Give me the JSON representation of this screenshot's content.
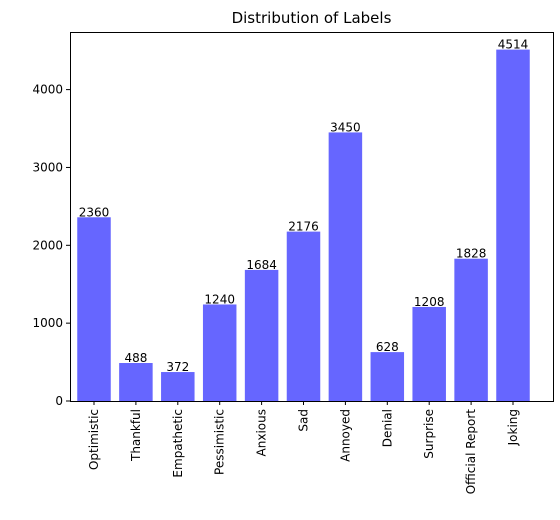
{
  "chart_data": {
    "type": "bar",
    "title": "Distribution of Labels",
    "xlabel": "",
    "ylabel": "",
    "categories": [
      "Optimistic",
      "Thankful",
      "Empathetic",
      "Pessimistic",
      "Anxious",
      "Sad",
      "Annoyed",
      "Denial",
      "Surprise",
      "Official Report",
      "Joking"
    ],
    "values": [
      2360,
      488,
      372,
      1240,
      1684,
      2176,
      3450,
      628,
      1208,
      1828,
      4514
    ],
    "data_labels": [
      "2360",
      "488",
      "372",
      "1240",
      "1684",
      "2176",
      "3450",
      "628",
      "1208",
      "1828",
      "4514"
    ],
    "ylim": [
      0,
      4740
    ],
    "yticks": [
      0,
      1000,
      2000,
      3000,
      4000
    ],
    "ytick_labels": [
      "0",
      "1000",
      "2000",
      "3000",
      "4000"
    ],
    "bar_color": "#6666ff",
    "grid": false,
    "legend": "none"
  }
}
